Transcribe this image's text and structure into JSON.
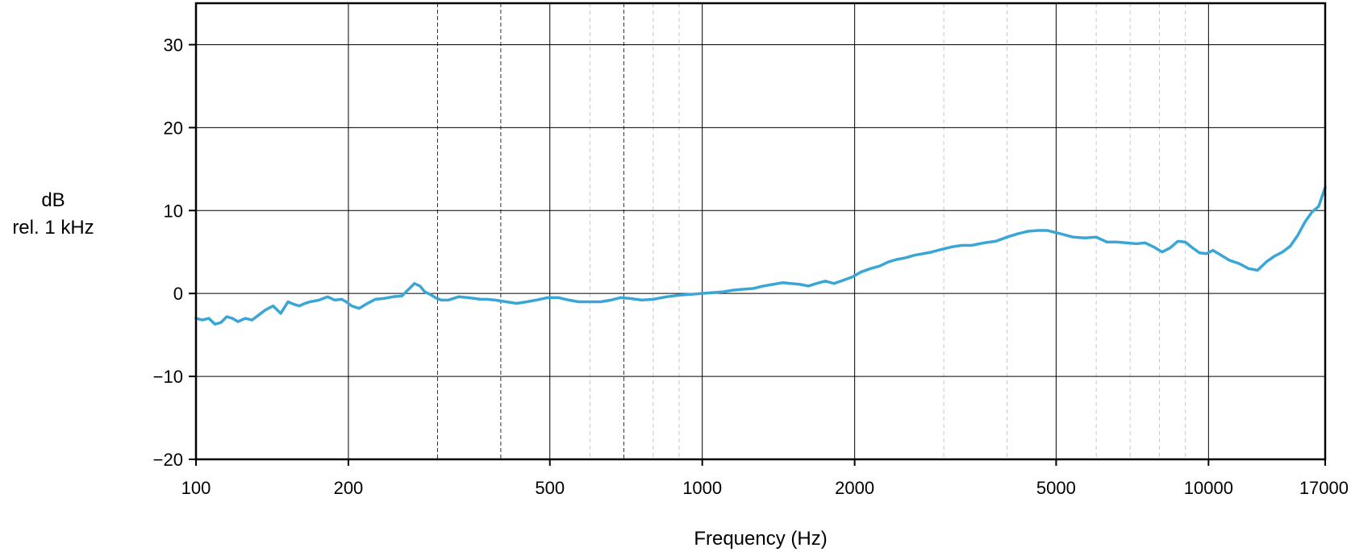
{
  "chart_data": {
    "type": "line",
    "title": "",
    "xlabel": "Frequency (Hz)",
    "ylabel_line1": "dB",
    "ylabel_line2": "rel. 1 kHz",
    "x_scale": "log",
    "xlim": [
      100,
      17000
    ],
    "ylim": [
      -20,
      35
    ],
    "x_ticks": [
      100,
      200,
      500,
      1000,
      2000,
      5000,
      10000,
      17000
    ],
    "x_tick_labels": [
      "100",
      "200",
      "500",
      "1000",
      "2000",
      "5000",
      "10000",
      "17000"
    ],
    "y_ticks": [
      -20,
      -10,
      0,
      10,
      20,
      30
    ],
    "y_tick_labels": [
      "−20",
      "−10",
      "0",
      "10",
      "20",
      "30"
    ],
    "grid": true,
    "minor_gridlines_dashed_dark": [
      300,
      400,
      700
    ],
    "minor_gridlines_dashed_light": [
      600,
      800,
      900,
      3000,
      4000,
      6000,
      7000,
      8000,
      9000
    ],
    "line_color": "#3aa6d6",
    "legend": "none",
    "series": [
      {
        "x": [
          100,
          103,
          106,
          109,
          112,
          115,
          118,
          121,
          125,
          129,
          133,
          137,
          142,
          147,
          152,
          156,
          160,
          164,
          168,
          175,
          182,
          188,
          194,
          198,
          203,
          210,
          218,
          226,
          235,
          245,
          255,
          263,
          270,
          277,
          283,
          290,
          297,
          305,
          315,
          330,
          345,
          355,
          365,
          375,
          390,
          410,
          430,
          450,
          470,
          495,
          520,
          545,
          570,
          600,
          630,
          660,
          690,
          720,
          760,
          800,
          850,
          900,
          950,
          1000,
          1050,
          1100,
          1150,
          1200,
          1260,
          1320,
          1380,
          1440,
          1500,
          1560,
          1620,
          1680,
          1750,
          1820,
          1900,
          1980,
          2060,
          2150,
          2240,
          2330,
          2420,
          2520,
          2620,
          2730,
          2840,
          2960,
          3100,
          3250,
          3400,
          3600,
          3800,
          4000,
          4200,
          4400,
          4600,
          4800,
          5100,
          5400,
          5700,
          6000,
          6300,
          6600,
          6900,
          7200,
          7500,
          7800,
          8100,
          8400,
          8700,
          9000,
          9300,
          9600,
          9900,
          10200,
          10600,
          11000,
          11500,
          12000,
          12500,
          13000,
          13500,
          14000,
          14500,
          15000,
          15500,
          16000,
          16500,
          17000
        ],
        "y": [
          -3.0,
          -3.2,
          -3.0,
          -3.7,
          -3.5,
          -2.8,
          -3.0,
          -3.4,
          -3.0,
          -3.2,
          -2.6,
          -2.0,
          -1.5,
          -2.4,
          -1.0,
          -1.3,
          -1.5,
          -1.2,
          -1.0,
          -0.8,
          -0.4,
          -0.8,
          -0.7,
          -1.0,
          -1.5,
          -1.8,
          -1.2,
          -0.7,
          -0.6,
          -0.4,
          -0.3,
          0.5,
          1.2,
          0.9,
          0.2,
          -0.1,
          -0.5,
          -0.8,
          -0.8,
          -0.4,
          -0.5,
          -0.6,
          -0.7,
          -0.7,
          -0.8,
          -1.0,
          -1.2,
          -1.0,
          -0.8,
          -0.5,
          -0.5,
          -0.8,
          -1.0,
          -1.0,
          -1.0,
          -0.8,
          -0.5,
          -0.6,
          -0.8,
          -0.7,
          -0.4,
          -0.2,
          -0.1,
          0.0,
          0.1,
          0.2,
          0.4,
          0.5,
          0.6,
          0.9,
          1.1,
          1.3,
          1.2,
          1.1,
          0.9,
          1.2,
          1.5,
          1.2,
          1.6,
          2.0,
          2.6,
          3.0,
          3.3,
          3.8,
          4.1,
          4.3,
          4.6,
          4.8,
          5.0,
          5.3,
          5.6,
          5.8,
          5.8,
          6.1,
          6.3,
          6.8,
          7.2,
          7.5,
          7.6,
          7.6,
          7.2,
          6.8,
          6.7,
          6.8,
          6.2,
          6.2,
          6.1,
          6.0,
          6.1,
          5.6,
          5.0,
          5.5,
          6.3,
          6.2,
          5.5,
          4.9,
          4.8,
          5.2,
          4.6,
          4.0,
          3.6,
          3.0,
          2.8,
          3.8,
          4.5,
          5.0,
          5.7,
          7.0,
          8.6,
          9.8,
          10.5,
          12.8
        ]
      }
    ]
  }
}
